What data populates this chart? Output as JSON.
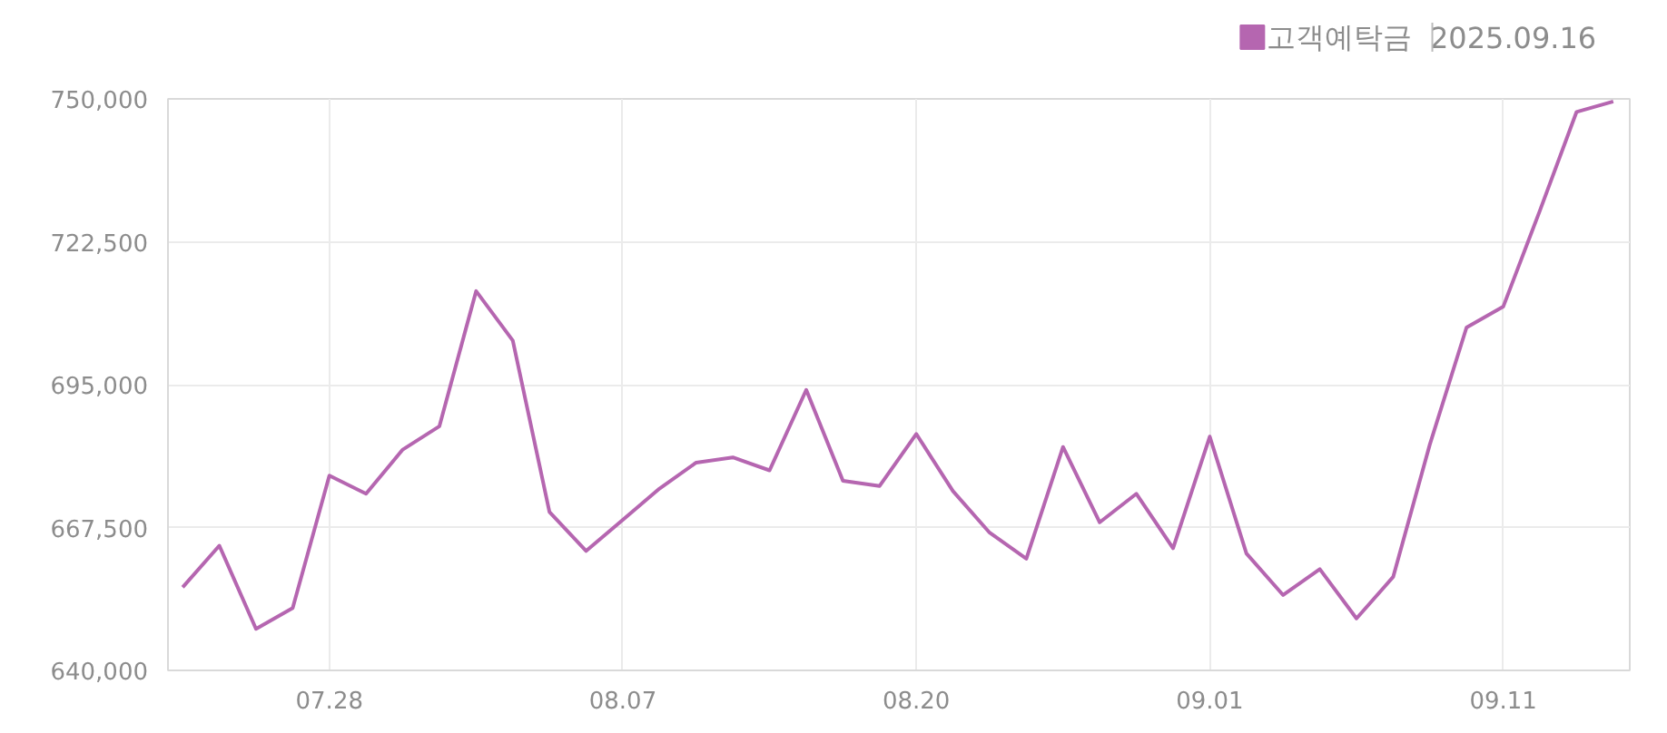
{
  "chart_data": {
    "type": "line",
    "subtitle": "2025.09.16",
    "categories": [
      null,
      null,
      null,
      null,
      "07.28",
      null,
      null,
      null,
      null,
      null,
      null,
      null,
      "08.07",
      null,
      null,
      null,
      null,
      null,
      null,
      null,
      "08.20",
      null,
      null,
      null,
      null,
      null,
      null,
      null,
      "09.01",
      null,
      null,
      null,
      null,
      null,
      null,
      null,
      "09.11",
      null,
      null,
      null
    ],
    "series": [
      {
        "name": "고객예탁금",
        "color": "#b566b0",
        "values": [
          656000,
          664000,
          648000,
          652000,
          677500,
          674000,
          682500,
          687000,
          713000,
          703500,
          670500,
          663000,
          669000,
          675000,
          680000,
          681000,
          678500,
          694000,
          676500,
          675500,
          685500,
          674500,
          666500,
          661500,
          683000,
          668500,
          674000,
          663500,
          685000,
          662500,
          654500,
          659500,
          650000,
          658000,
          683500,
          706000,
          710000,
          728500,
          747500,
          749500
        ]
      }
    ],
    "ylim": [
      640000,
      750000
    ],
    "yticks": [
      {
        "value": 640000,
        "label": "640,000"
      },
      {
        "value": 667500,
        "label": "667,500"
      },
      {
        "value": 695000,
        "label": "695,000"
      },
      {
        "value": 722500,
        "label": "722,500"
      },
      {
        "value": 750000,
        "label": "750,000"
      }
    ],
    "grid": true,
    "legend": "top right",
    "marker": "none",
    "line_style": "solid"
  }
}
